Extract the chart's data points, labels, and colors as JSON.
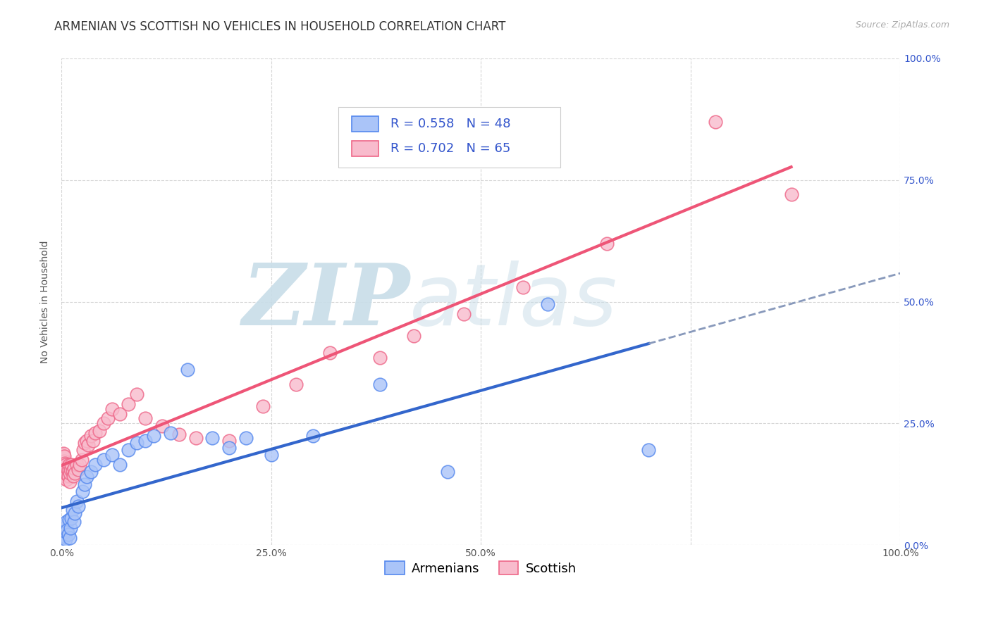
{
  "title": "ARMENIAN VS SCOTTISH NO VEHICLES IN HOUSEHOLD CORRELATION CHART",
  "source": "Source: ZipAtlas.com",
  "ylabel": "No Vehicles in Household",
  "background_color": "#ffffff",
  "grid_color": "#bbbbbb",
  "watermark_zip": "ZIP",
  "watermark_atlas": "atlas",
  "watermark_color_zip": "#c8dde8",
  "watermark_color_atlas": "#c8dde8",
  "armenian_color": "#5588ee",
  "armenian_fill": "#aac4f8",
  "scottish_color": "#ee6688",
  "scottish_fill": "#f8bbcc",
  "legend_color": "#3355cc",
  "armenian_R": 0.558,
  "armenian_N": 48,
  "scottish_R": 0.702,
  "scottish_N": 65,
  "arm_line_color": "#3366cc",
  "arm_dash_color": "#8899bb",
  "sco_line_color": "#ee5577",
  "armenian_scatter_x": [
    0.001,
    0.001,
    0.002,
    0.002,
    0.002,
    0.003,
    0.003,
    0.003,
    0.004,
    0.004,
    0.005,
    0.005,
    0.006,
    0.006,
    0.007,
    0.008,
    0.009,
    0.01,
    0.011,
    0.012,
    0.013,
    0.015,
    0.016,
    0.018,
    0.02,
    0.025,
    0.028,
    0.03,
    0.035,
    0.04,
    0.05,
    0.06,
    0.07,
    0.08,
    0.09,
    0.1,
    0.11,
    0.13,
    0.15,
    0.18,
    0.2,
    0.22,
    0.25,
    0.3,
    0.38,
    0.46,
    0.58,
    0.7
  ],
  "armenian_scatter_y": [
    0.02,
    0.028,
    0.018,
    0.025,
    0.032,
    0.015,
    0.022,
    0.035,
    0.018,
    0.04,
    0.012,
    0.028,
    0.038,
    0.048,
    0.03,
    0.022,
    0.052,
    0.015,
    0.035,
    0.055,
    0.072,
    0.048,
    0.065,
    0.09,
    0.08,
    0.11,
    0.125,
    0.14,
    0.15,
    0.165,
    0.175,
    0.185,
    0.165,
    0.195,
    0.21,
    0.215,
    0.225,
    0.23,
    0.36,
    0.22,
    0.2,
    0.22,
    0.185,
    0.225,
    0.33,
    0.15,
    0.495,
    0.195
  ],
  "scottish_scatter_x": [
    0.001,
    0.001,
    0.001,
    0.002,
    0.002,
    0.002,
    0.002,
    0.003,
    0.003,
    0.003,
    0.003,
    0.004,
    0.004,
    0.004,
    0.005,
    0.005,
    0.005,
    0.006,
    0.006,
    0.007,
    0.007,
    0.008,
    0.008,
    0.009,
    0.01,
    0.01,
    0.011,
    0.012,
    0.013,
    0.014,
    0.015,
    0.016,
    0.018,
    0.02,
    0.022,
    0.024,
    0.026,
    0.028,
    0.03,
    0.032,
    0.035,
    0.038,
    0.04,
    0.045,
    0.05,
    0.055,
    0.06,
    0.07,
    0.08,
    0.09,
    0.1,
    0.12,
    0.14,
    0.16,
    0.2,
    0.24,
    0.28,
    0.32,
    0.38,
    0.42,
    0.48,
    0.55,
    0.65,
    0.78,
    0.87
  ],
  "scottish_scatter_y": [
    0.165,
    0.175,
    0.185,
    0.155,
    0.168,
    0.178,
    0.188,
    0.148,
    0.162,
    0.172,
    0.182,
    0.145,
    0.158,
    0.168,
    0.14,
    0.152,
    0.165,
    0.135,
    0.155,
    0.145,
    0.158,
    0.142,
    0.155,
    0.165,
    0.13,
    0.148,
    0.155,
    0.165,
    0.152,
    0.142,
    0.158,
    0.148,
    0.165,
    0.155,
    0.165,
    0.175,
    0.195,
    0.21,
    0.215,
    0.205,
    0.225,
    0.215,
    0.23,
    0.235,
    0.25,
    0.26,
    0.28,
    0.27,
    0.29,
    0.31,
    0.26,
    0.245,
    0.228,
    0.22,
    0.215,
    0.285,
    0.33,
    0.395,
    0.385,
    0.43,
    0.475,
    0.53,
    0.62,
    0.87,
    0.72
  ],
  "xlim": [
    0.0,
    1.0
  ],
  "ylim": [
    0.0,
    1.0
  ],
  "title_fontsize": 12,
  "axis_label_fontsize": 10,
  "tick_fontsize": 10,
  "legend_fontsize": 13,
  "marker_size": 180
}
